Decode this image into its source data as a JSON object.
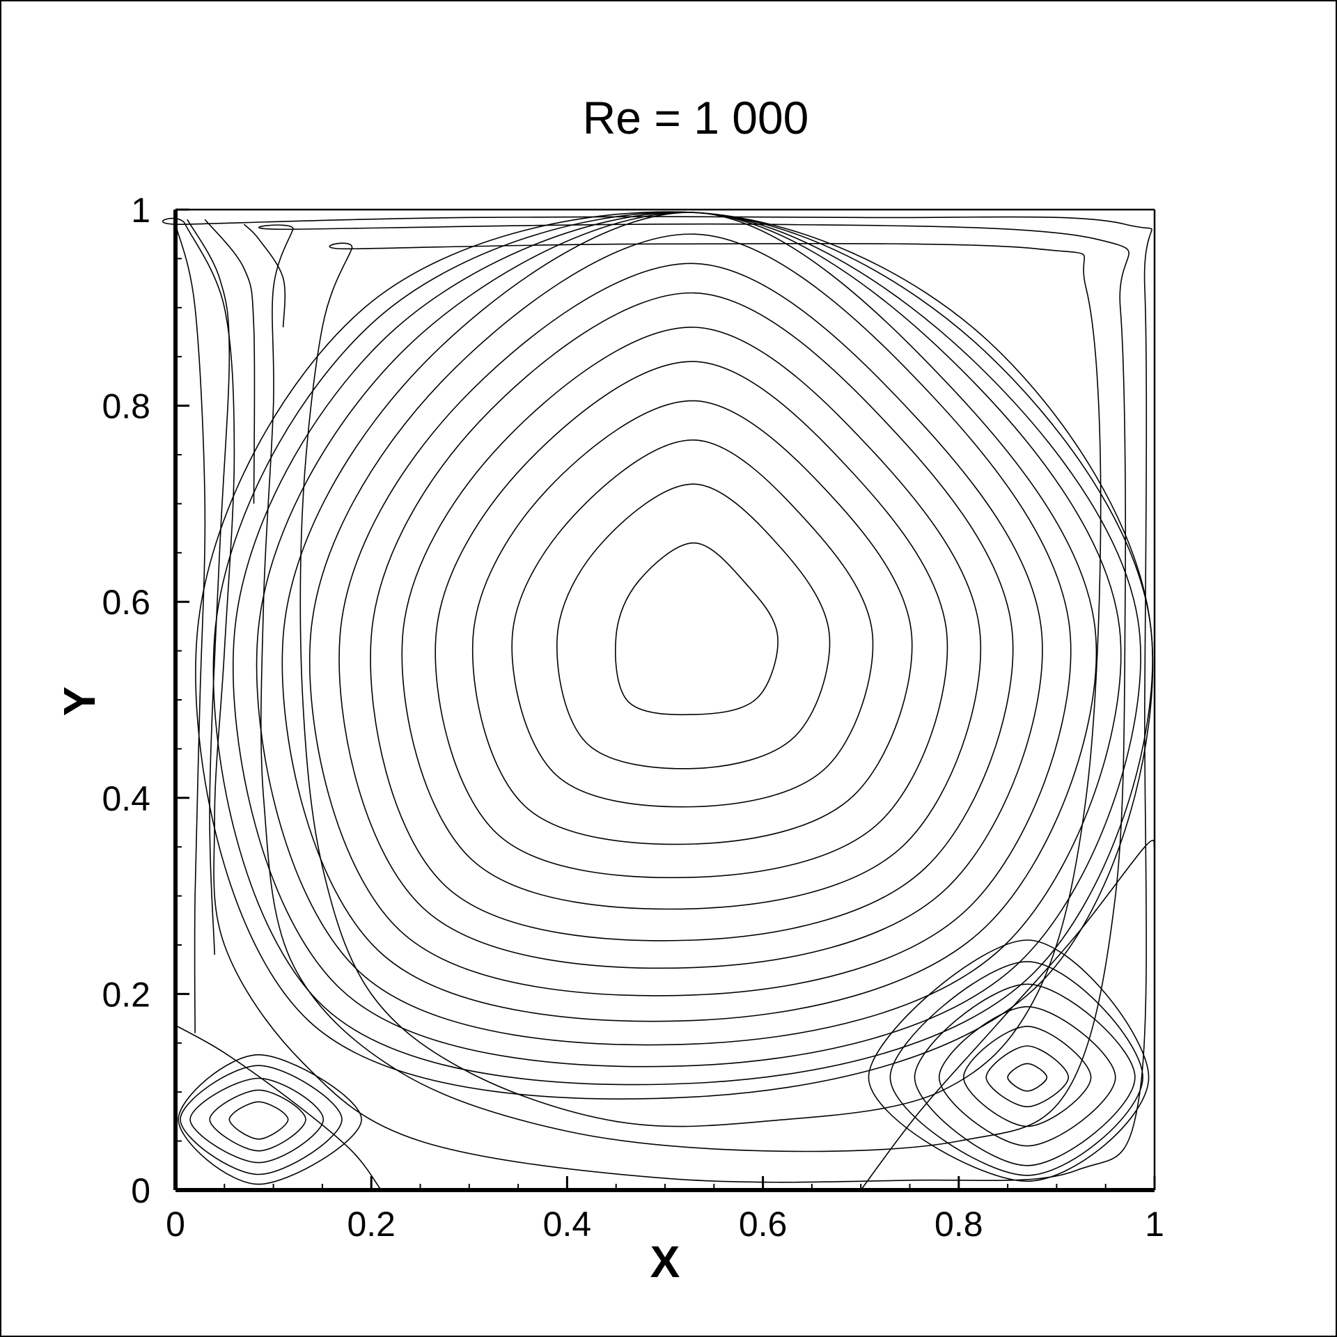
{
  "chart_data": {
    "type": "contour",
    "title": "Re = 1 000",
    "xlabel": "X",
    "ylabel": "Y",
    "xlim": [
      0,
      1
    ],
    "ylim": [
      0,
      1
    ],
    "x_ticks": [
      0,
      0.2,
      0.4,
      0.6,
      0.8,
      1
    ],
    "x_tick_labels": [
      "0",
      "0.2",
      "0.4",
      "0.6",
      "0.8",
      "1"
    ],
    "y_ticks": [
      0,
      0.2,
      0.4,
      0.6,
      0.8,
      1
    ],
    "y_tick_labels": [
      "0",
      "0.2",
      "0.4",
      "0.6",
      "0.8",
      "1"
    ],
    "minor_tick_step": 0.05,
    "grid": false,
    "line_color": "#000000",
    "primary_vortex": {
      "center": [
        0.53,
        0.565
      ],
      "levels": [
        {
          "r": [
            0.085,
            0.075,
            0.095,
            0.08,
            0.08,
            0.095,
            0.08,
            0.09
          ]
        },
        {
          "r": [
            0.138,
            0.126,
            0.155,
            0.134,
            0.14,
            0.155,
            0.135,
            0.145
          ]
        },
        {
          "r": [
            0.182,
            0.164,
            0.2,
            0.174,
            0.186,
            0.2,
            0.174,
            0.19
          ]
        },
        {
          "r": [
            0.222,
            0.2,
            0.24,
            0.212,
            0.226,
            0.245,
            0.212,
            0.23
          ]
        },
        {
          "r": [
            0.258,
            0.232,
            0.28,
            0.246,
            0.264,
            0.285,
            0.246,
            0.268
          ]
        },
        {
          "r": [
            0.292,
            0.262,
            0.315,
            0.278,
            0.298,
            0.322,
            0.278,
            0.302
          ]
        },
        {
          "r": [
            0.325,
            0.292,
            0.35,
            0.31,
            0.33,
            0.36,
            0.31,
            0.334
          ]
        },
        {
          "r": [
            0.355,
            0.318,
            0.38,
            0.338,
            0.362,
            0.392,
            0.338,
            0.364
          ]
        },
        {
          "r": [
            0.384,
            0.345,
            0.41,
            0.366,
            0.392,
            0.425,
            0.366,
            0.394
          ]
        },
        {
          "r": [
            0.41,
            0.365,
            0.44,
            0.392,
            0.42,
            0.455,
            0.392,
            0.42
          ]
        },
        {
          "r": [
            0.435,
            0.385,
            0.468,
            0.416,
            0.446,
            0.484,
            0.416,
            0.447
          ]
        },
        {
          "r": [
            0.455,
            0.4,
            0.495,
            0.438,
            0.47,
            0.51,
            0.438,
            0.47
          ]
        },
        {
          "r": [
            0.47,
            0.415,
            0.52,
            0.458,
            0.49,
            0.535,
            0.456,
            0.488
          ]
        },
        {
          "r": [
            0.482,
            0.425,
            0.54,
            0.475,
            0.508,
            0.556,
            0.47,
            0.5
          ]
        }
      ]
    },
    "outer_streamlines": [
      {
        "points": [
          [
            0.01,
            0.985
          ],
          [
            0.05,
            0.9
          ],
          [
            0.06,
            0.75
          ],
          [
            0.05,
            0.55
          ],
          [
            0.04,
            0.38
          ],
          [
            0.05,
            0.25
          ],
          [
            0.13,
            0.13
          ],
          [
            0.25,
            0.05
          ],
          [
            0.5,
            0.012
          ],
          [
            0.75,
            0.01
          ],
          [
            0.92,
            0.02
          ],
          [
            0.985,
            0.1
          ],
          [
            0.99,
            0.5
          ],
          [
            0.99,
            0.92
          ],
          [
            0.97,
            0.985
          ],
          [
            0.7,
            0.992
          ],
          [
            0.3,
            0.992
          ],
          [
            0.01,
            0.985
          ]
        ]
      },
      {
        "points": [
          [
            0.12,
            0.98
          ],
          [
            0.1,
            0.92
          ],
          [
            0.1,
            0.8
          ],
          [
            0.09,
            0.6
          ],
          [
            0.09,
            0.4
          ],
          [
            0.12,
            0.23
          ],
          [
            0.23,
            0.12
          ],
          [
            0.4,
            0.06
          ],
          [
            0.6,
            0.04
          ],
          [
            0.8,
            0.05
          ],
          [
            0.91,
            0.1
          ],
          [
            0.96,
            0.3
          ],
          [
            0.97,
            0.6
          ],
          [
            0.965,
            0.9
          ],
          [
            0.94,
            0.97
          ],
          [
            0.6,
            0.985
          ],
          [
            0.12,
            0.98
          ]
        ]
      },
      {
        "points": [
          [
            0.18,
            0.96
          ],
          [
            0.15,
            0.88
          ],
          [
            0.13,
            0.7
          ],
          [
            0.13,
            0.5
          ],
          [
            0.15,
            0.33
          ],
          [
            0.2,
            0.2
          ],
          [
            0.3,
            0.12
          ],
          [
            0.45,
            0.07
          ],
          [
            0.6,
            0.07
          ],
          [
            0.78,
            0.1
          ],
          [
            0.88,
            0.2
          ],
          [
            0.93,
            0.4
          ],
          [
            0.945,
            0.7
          ],
          [
            0.93,
            0.92
          ],
          [
            0.88,
            0.96
          ],
          [
            0.5,
            0.965
          ],
          [
            0.18,
            0.96
          ]
        ]
      }
    ],
    "left_wall_streamlines": [
      {
        "points": [
          [
            0.0,
            0.985
          ],
          [
            0.02,
            0.9
          ],
          [
            0.03,
            0.7
          ],
          [
            0.025,
            0.5
          ],
          [
            0.02,
            0.3
          ],
          [
            0.02,
            0.16
          ]
        ]
      },
      {
        "points": [
          [
            0.012,
            0.99
          ],
          [
            0.045,
            0.93
          ],
          [
            0.055,
            0.85
          ],
          [
            0.045,
            0.65
          ],
          [
            0.035,
            0.4
          ],
          [
            0.04,
            0.24
          ]
        ]
      },
      {
        "points": [
          [
            0.03,
            0.99
          ],
          [
            0.07,
            0.94
          ],
          [
            0.08,
            0.88
          ],
          [
            0.08,
            0.7
          ]
        ]
      },
      {
        "points": [
          [
            0.07,
            0.985
          ],
          [
            0.085,
            0.97
          ],
          [
            0.11,
            0.93
          ],
          [
            0.11,
            0.88
          ]
        ]
      }
    ],
    "bottom_left_vortex": {
      "center": [
        0.085,
        0.072
      ],
      "levels": [
        {
          "r": [
            0.03,
            0.018,
            0.03,
            0.02
          ]
        },
        {
          "r": [
            0.048,
            0.03,
            0.05,
            0.032
          ]
        },
        {
          "r": [
            0.066,
            0.042,
            0.07,
            0.044
          ]
        },
        {
          "r": [
            0.085,
            0.055,
            0.08,
            0.056
          ]
        },
        {
          "r": [
            0.105,
            0.066,
            0.088,
            0.066
          ]
        }
      ],
      "separatrix": [
        [
          0.0,
          0.168
        ],
        [
          0.05,
          0.14
        ],
        [
          0.12,
          0.09
        ],
        [
          0.18,
          0.04
        ],
        [
          0.21,
          0.0
        ]
      ]
    },
    "bottom_right_vortex": {
      "center": [
        0.87,
        0.115
      ],
      "levels": [
        {
          "r": [
            0.02,
            0.014,
            0.02,
            0.014
          ]
        },
        {
          "r": [
            0.042,
            0.032,
            0.042,
            0.03
          ]
        },
        {
          "r": [
            0.065,
            0.052,
            0.065,
            0.05
          ]
        },
        {
          "r": [
            0.09,
            0.072,
            0.09,
            0.07
          ]
        },
        {
          "r": [
            0.11,
            0.095,
            0.115,
            0.09
          ]
        },
        {
          "r": [
            0.118,
            0.118,
            0.14,
            0.1
          ]
        },
        {
          "r": [
            0.124,
            0.14,
            0.162,
            0.106
          ]
        }
      ],
      "separatrix": [
        [
          0.7,
          0.0
        ],
        [
          0.76,
          0.08
        ],
        [
          0.84,
          0.17
        ],
        [
          0.92,
          0.26
        ],
        [
          0.99,
          0.35
        ],
        [
          1.0,
          0.35
        ]
      ]
    }
  }
}
